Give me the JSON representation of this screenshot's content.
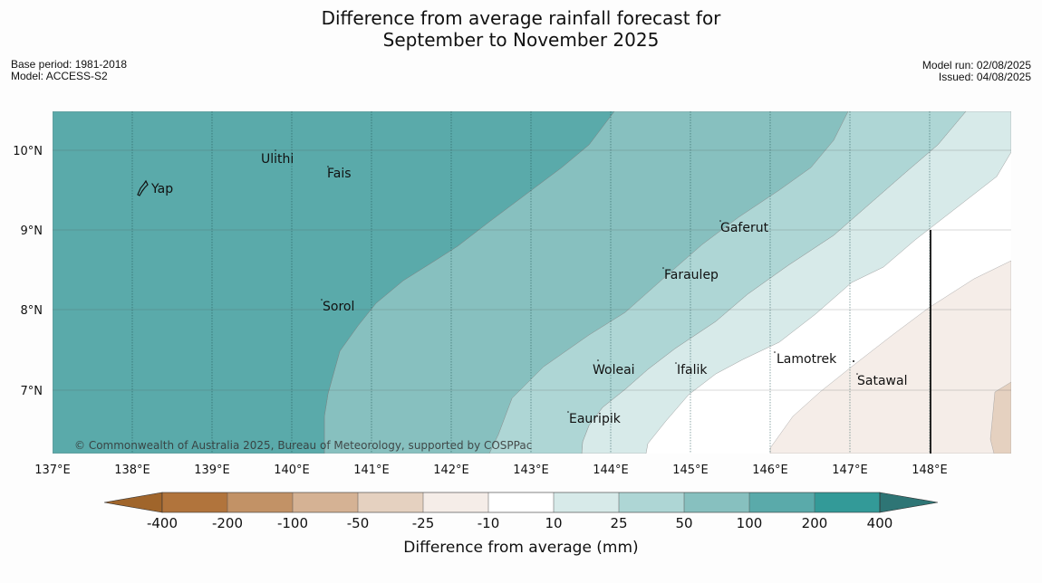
{
  "title": {
    "line1": "Difference from average rainfall forecast for",
    "line2": "September to November 2025"
  },
  "meta": {
    "base_period": "Base period: 1981-2018",
    "model": "Model: ACCESS-S2",
    "model_run": "Model run: 02/08/2025",
    "issued": "Issued: 04/08/2025"
  },
  "copyright": "© Commonwealth of Australia 2025, Bureau of Meteorology, supported by COSPPac",
  "map": {
    "lon_range": [
      137,
      149
    ],
    "lat_range": [
      6.2,
      10.5
    ],
    "x_ticks": [
      "137°E",
      "138°E",
      "139°E",
      "140°E",
      "141°E",
      "142°E",
      "143°E",
      "144°E",
      "145°E",
      "146°E",
      "147°E",
      "148°E"
    ],
    "y_ticks": [
      "10°N",
      "9°N",
      "8°N",
      "7°N"
    ],
    "places": [
      {
        "name": "Yap"
      },
      {
        "name": "Ulithi"
      },
      {
        "name": "Fais"
      },
      {
        "name": "Gaferut"
      },
      {
        "name": "Faraulep"
      },
      {
        "name": "Sorol"
      },
      {
        "name": "Lamotrek"
      },
      {
        "name": "Satawal"
      },
      {
        "name": "Woleai"
      },
      {
        "name": "Ifalik"
      },
      {
        "name": "Eauripik"
      }
    ]
  },
  "colorbar": {
    "labels": [
      "-400",
      "-200",
      "-100",
      "-50",
      "-25",
      "-10",
      "10",
      "25",
      "50",
      "100",
      "200",
      "400"
    ],
    "colors": [
      "#a0652b",
      "#b1743c",
      "#c29266",
      "#d5b294",
      "#e5d1c0",
      "#f5ede8",
      "#ffffff",
      "#d7eae9",
      "#aed6d5",
      "#87c0bf",
      "#5aaaaa",
      "#339a98",
      "#2e7575"
    ],
    "xlabel": "Difference from average (mm)"
  },
  "colors": {
    "band_200": "#5aaaaa",
    "band_100": "#87c0bf",
    "band_50": "#aed6d5",
    "band_25": "#d7eae9",
    "band_10": "#ffffff",
    "band_m10": "#f5ede8",
    "band_m25": "#e5d1c0"
  }
}
